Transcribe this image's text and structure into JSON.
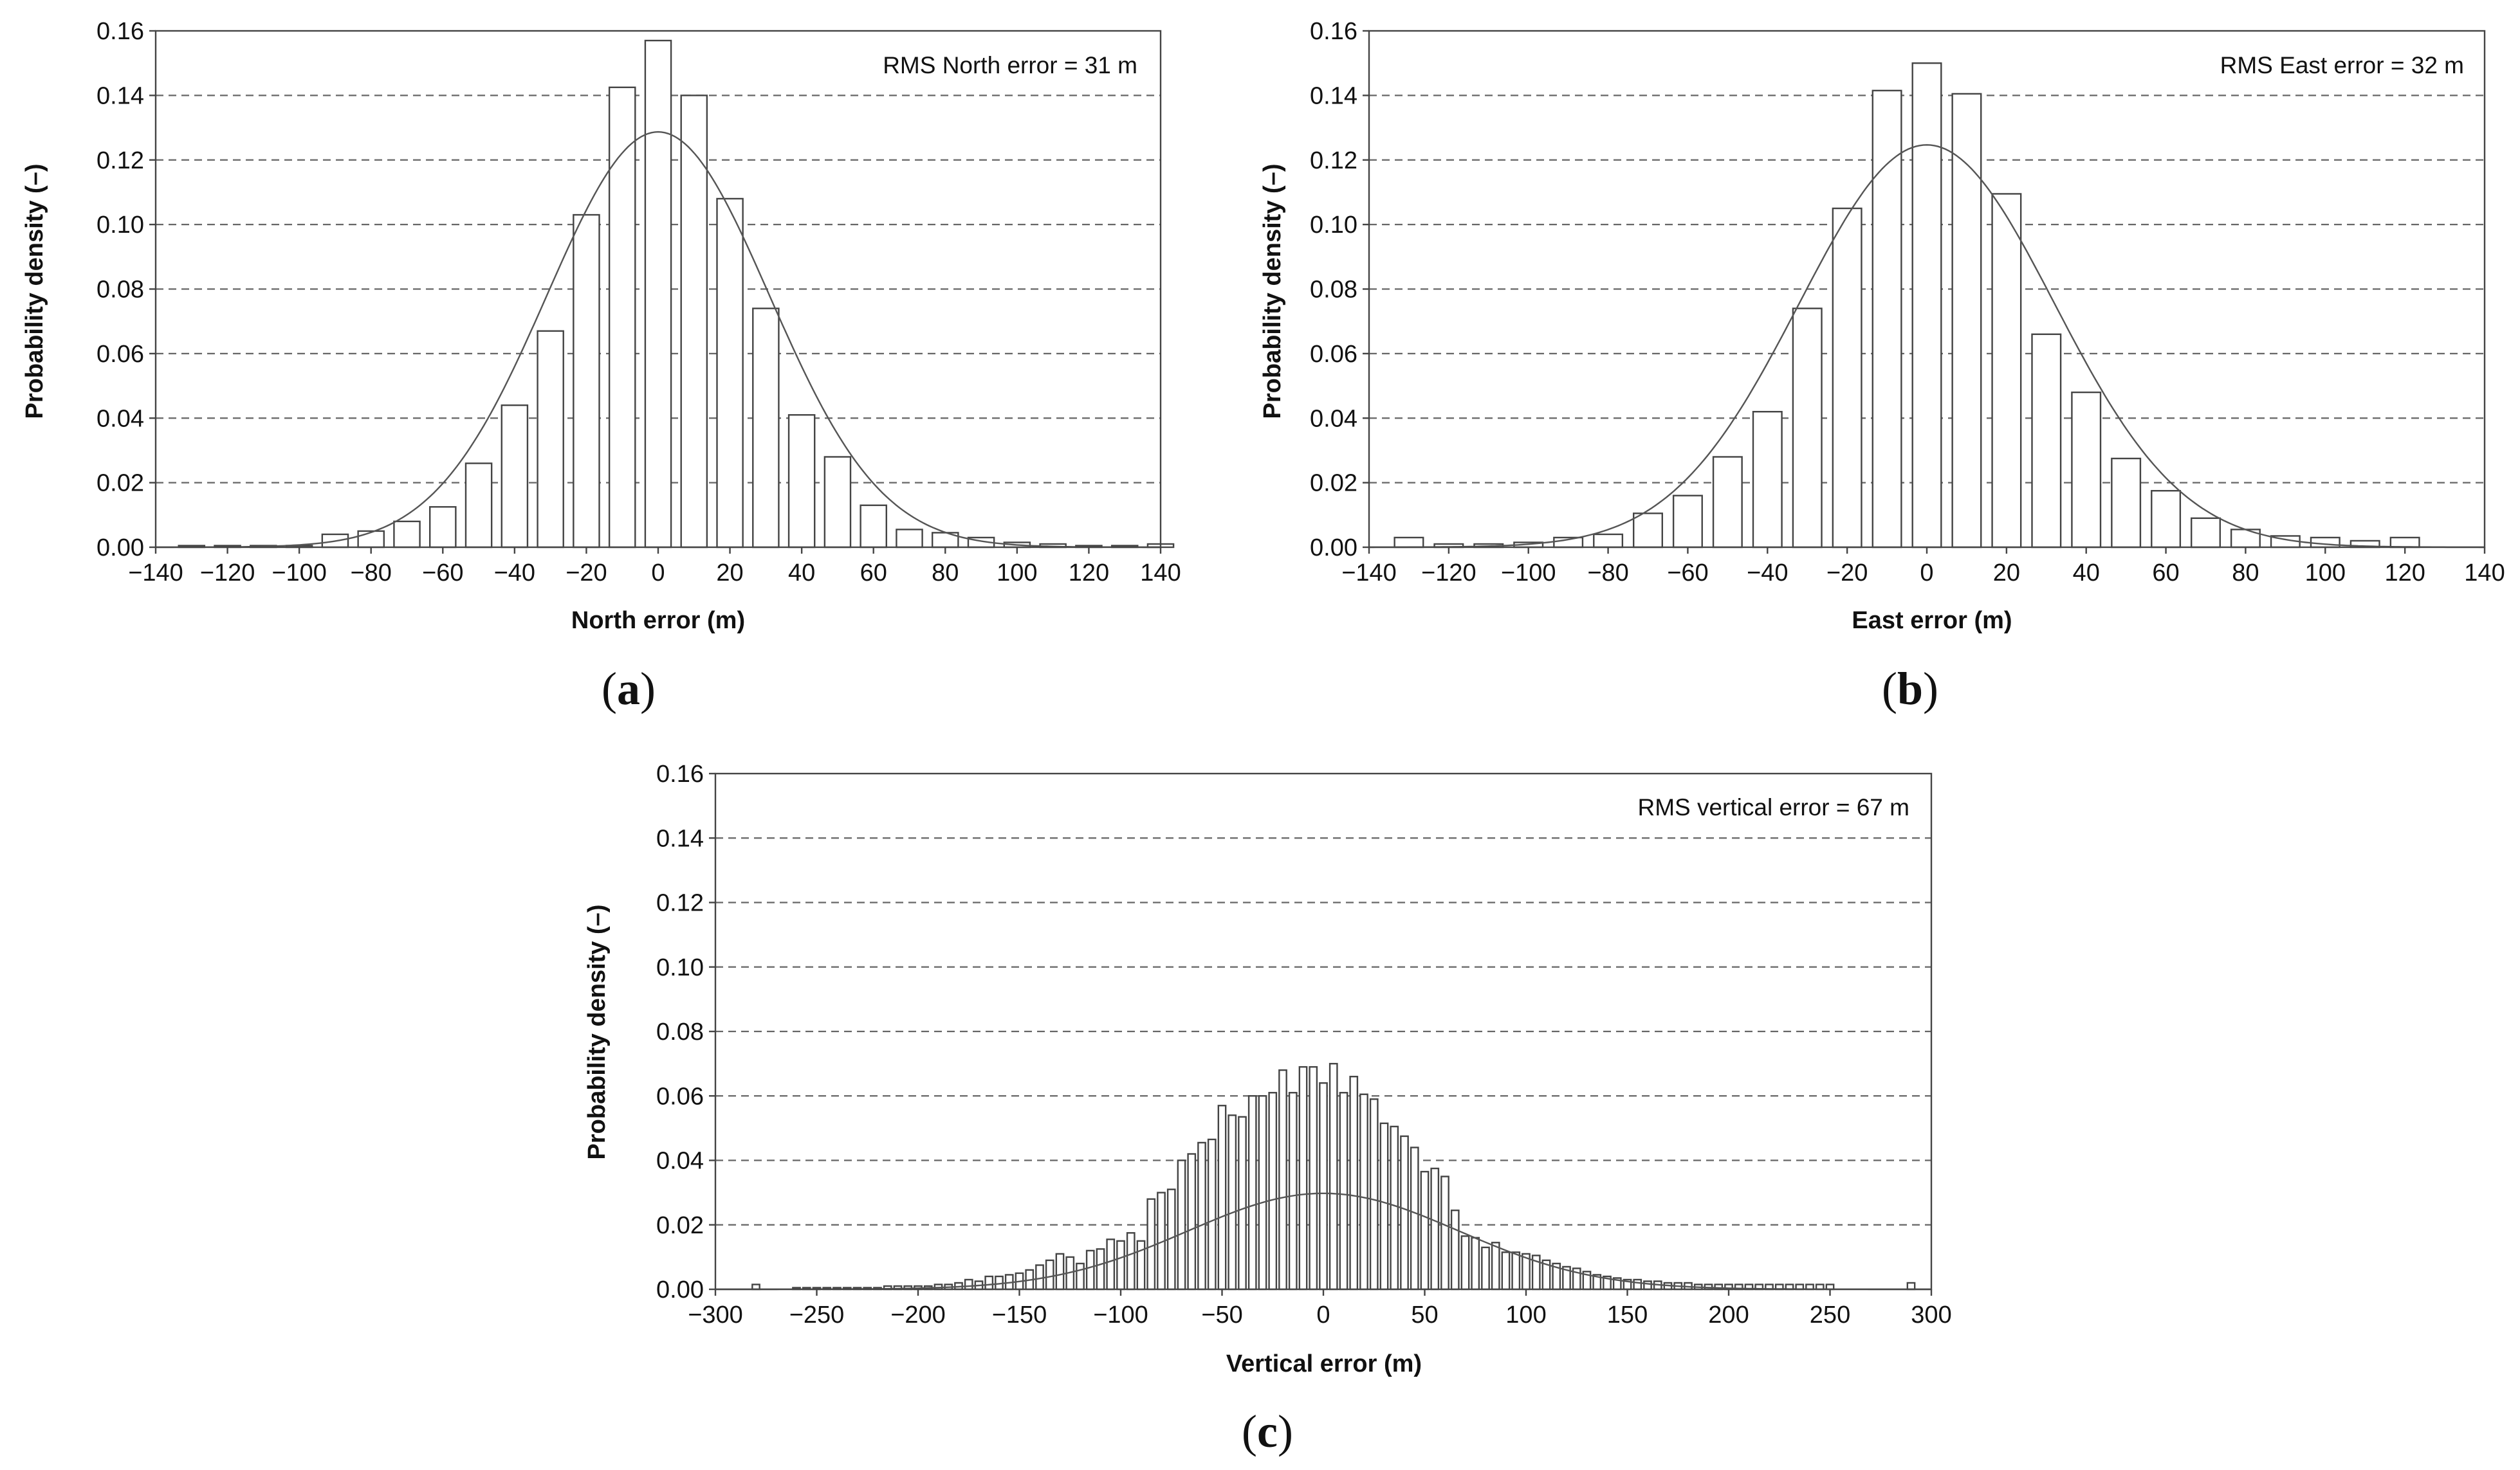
{
  "chart_data": [
    {
      "type": "bar",
      "panel": "a",
      "xlabel": "North error (m)",
      "ylabel": "Probability density (–)",
      "annotation": "RMS North error = 31 m",
      "xlim": [
        -140,
        140
      ],
      "ylim": [
        0,
        0.16
      ],
      "xticks": [
        "−140",
        "−120",
        "−100",
        "−80",
        "−60",
        "−40",
        "−20",
        "0",
        "20",
        "40",
        "60",
        "80",
        "100",
        "120",
        "140"
      ],
      "yticks": [
        "0.00",
        "0.02",
        "0.04",
        "0.06",
        "0.08",
        "0.10",
        "0.12",
        "0.14",
        "0.16"
      ],
      "bin_width": 10,
      "x": [
        -130,
        -120,
        -110,
        -100,
        -90,
        -80,
        -70,
        -60,
        -50,
        -40,
        -30,
        -20,
        -10,
        0,
        10,
        20,
        30,
        40,
        50,
        60,
        70,
        80,
        90,
        100,
        110,
        120,
        130,
        140
      ],
      "values": [
        0.0005,
        0.0005,
        0.0005,
        0.0005,
        0.004,
        0.005,
        0.008,
        0.0125,
        0.026,
        0.044,
        0.067,
        0.103,
        0.1425,
        0.157,
        0.14,
        0.108,
        0.074,
        0.041,
        0.028,
        0.013,
        0.0055,
        0.0045,
        0.003,
        0.0015,
        0.001,
        0.0005,
        0.0005,
        0.001
      ],
      "fit_sigma": 31
    },
    {
      "type": "bar",
      "panel": "b",
      "xlabel": "East error (m)",
      "ylabel": "Probability density (–)",
      "annotation": "RMS East error = 32 m",
      "xlim": [
        -140,
        140
      ],
      "ylim": [
        0,
        0.16
      ],
      "xticks": [
        "−140",
        "−120",
        "−100",
        "−80",
        "−60",
        "−40",
        "−20",
        "0",
        "20",
        "40",
        "60",
        "80",
        "100",
        "120",
        "140"
      ],
      "yticks": [
        "0.00",
        "0.02",
        "0.04",
        "0.06",
        "0.08",
        "0.10",
        "0.12",
        "0.14",
        "0.16"
      ],
      "bin_width": 10,
      "x": [
        -130,
        -120,
        -110,
        -100,
        -90,
        -80,
        -70,
        -60,
        -50,
        -40,
        -30,
        -20,
        -10,
        0,
        10,
        20,
        30,
        40,
        50,
        60,
        70,
        80,
        90,
        100,
        110,
        120
      ],
      "values": [
        0.003,
        0.001,
        0.001,
        0.0015,
        0.003,
        0.004,
        0.0105,
        0.016,
        0.028,
        0.042,
        0.074,
        0.105,
        0.1415,
        0.15,
        0.1405,
        0.1095,
        0.066,
        0.048,
        0.0275,
        0.0175,
        0.009,
        0.0055,
        0.0035,
        0.003,
        0.002,
        0.003
      ],
      "fit_sigma": 32
    },
    {
      "type": "bar",
      "panel": "c",
      "xlabel": "Vertical error (m)",
      "ylabel": "Probability density (–)",
      "annotation": "RMS vertical error = 67 m",
      "xlim": [
        -300,
        300
      ],
      "ylim": [
        0,
        0.16
      ],
      "xticks": [
        "−300",
        "−250",
        "−200",
        "−150",
        "−100",
        "−50",
        "0",
        "50",
        "100",
        "150",
        "200",
        "250",
        "300"
      ],
      "yticks": [
        "0.00",
        "0.02",
        "0.04",
        "0.06",
        "0.08",
        "0.10",
        "0.12",
        "0.14",
        "0.16"
      ],
      "bin_width": 5,
      "x": [
        -280,
        -260,
        -255,
        -250,
        -245,
        -240,
        -235,
        -230,
        -225,
        -220,
        -215,
        -210,
        -205,
        -200,
        -195,
        -190,
        -185,
        -180,
        -175,
        -170,
        -165,
        -160,
        -155,
        -150,
        -145,
        -140,
        -135,
        -130,
        -125,
        -120,
        -115,
        -110,
        -105,
        -100,
        -95,
        -90,
        -85,
        -80,
        -75,
        -70,
        -65,
        -60,
        -55,
        -50,
        -45,
        -40,
        -35,
        -30,
        -25,
        -20,
        -15,
        -10,
        -5,
        0,
        5,
        10,
        15,
        20,
        25,
        30,
        35,
        40,
        45,
        50,
        55,
        60,
        65,
        70,
        75,
        80,
        85,
        90,
        95,
        100,
        105,
        110,
        115,
        120,
        125,
        130,
        135,
        140,
        145,
        150,
        155,
        160,
        165,
        170,
        175,
        180,
        185,
        190,
        195,
        200,
        205,
        210,
        215,
        220,
        225,
        230,
        235,
        240,
        245,
        250,
        290
      ],
      "values": [
        0.0015,
        0.0005,
        0.0005,
        0.0005,
        0.0005,
        0.0005,
        0.0005,
        0.0005,
        0.0005,
        0.0005,
        0.001,
        0.001,
        0.001,
        0.001,
        0.001,
        0.0015,
        0.0015,
        0.002,
        0.003,
        0.0025,
        0.004,
        0.004,
        0.0045,
        0.005,
        0.006,
        0.0075,
        0.009,
        0.011,
        0.01,
        0.008,
        0.012,
        0.0125,
        0.0155,
        0.015,
        0.0175,
        0.015,
        0.028,
        0.03,
        0.031,
        0.04,
        0.042,
        0.0455,
        0.0465,
        0.057,
        0.054,
        0.0535,
        0.06,
        0.06,
        0.061,
        0.068,
        0.061,
        0.069,
        0.069,
        0.064,
        0.07,
        0.061,
        0.066,
        0.0605,
        0.059,
        0.0515,
        0.0505,
        0.0475,
        0.044,
        0.0365,
        0.0375,
        0.035,
        0.0245,
        0.0165,
        0.016,
        0.013,
        0.0145,
        0.0115,
        0.0115,
        0.011,
        0.0105,
        0.009,
        0.008,
        0.007,
        0.0065,
        0.0055,
        0.0045,
        0.004,
        0.0035,
        0.003,
        0.003,
        0.0025,
        0.0025,
        0.002,
        0.002,
        0.002,
        0.0015,
        0.0015,
        0.0015,
        0.0015,
        0.0015,
        0.0015,
        0.0015,
        0.0015,
        0.0015,
        0.0015,
        0.0015,
        0.0015,
        0.0015,
        0.0015,
        0.002
      ],
      "fit_sigma": 67
    }
  ],
  "labels": {
    "a": "a",
    "b": "b",
    "c": "c"
  }
}
